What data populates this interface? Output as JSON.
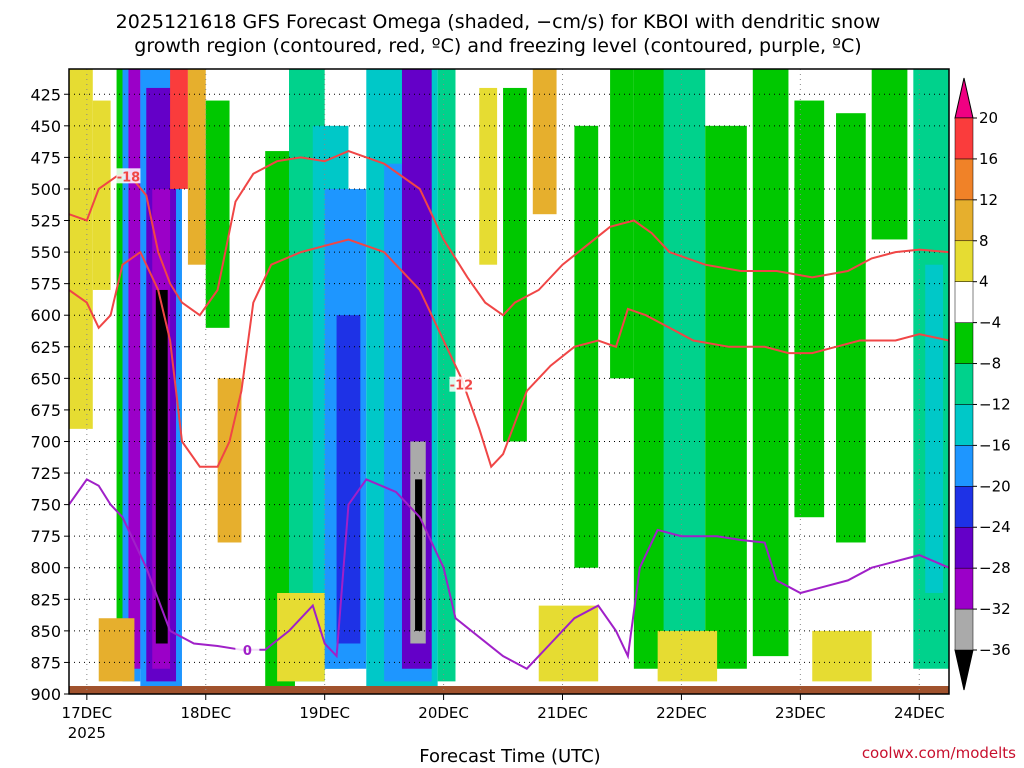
{
  "chart_data": {
    "type": "heatmap",
    "title_line1": "2025121618 GFS Forecast Omega (shaded, −cm/s) for KBOI with dendritic snow",
    "title_line2": "growth region (contoured, red, ºC) and freezing level (contoured, purple, ºC)",
    "xlabel": "Forecast Time (UTC)",
    "credit": "coolwx.com/modelts",
    "x_ticks": [
      "17DEC",
      "18DEC",
      "19DEC",
      "20DEC",
      "21DEC",
      "22DEC",
      "23DEC",
      "24DEC"
    ],
    "x_year": "2025",
    "y_ticks": [
      425,
      450,
      475,
      500,
      525,
      550,
      575,
      600,
      625,
      650,
      675,
      700,
      725,
      750,
      775,
      800,
      825,
      850,
      875,
      900
    ],
    "ylim": [
      900,
      405
    ],
    "xlim": [
      16.85,
      24.25
    ],
    "y_grid": true,
    "x_grid": true,
    "colorbar": {
      "levels": [
        -36,
        -32,
        -28,
        -24,
        -20,
        -16,
        -12,
        -8,
        -4,
        4,
        8,
        12,
        16,
        20
      ],
      "tick_labels": [
        "20",
        "16",
        "12",
        "8",
        "4",
        "−4",
        "−8",
        "−12",
        "−16",
        "−20",
        "−24",
        "−28",
        "−32",
        "−36"
      ],
      "bins": [
        {
          "range": "<-36",
          "color": "#000000"
        },
        {
          "range": "-36..-32",
          "color": "#aaaaaa"
        },
        {
          "range": "-32..-28",
          "color": "#9b00c8"
        },
        {
          "range": "-28..-24",
          "color": "#6400c8"
        },
        {
          "range": "-24..-20",
          "color": "#1e32e6"
        },
        {
          "range": "-20..-16",
          "color": "#1e96ff"
        },
        {
          "range": "-16..-12",
          "color": "#00c8c8"
        },
        {
          "range": "-12..-8",
          "color": "#00d28c"
        },
        {
          "range": "-8..-4",
          "color": "#00c800"
        },
        {
          "range": "-4..4",
          "color": "#ffffff"
        },
        {
          "range": "4..8",
          "color": "#e6dc32"
        },
        {
          "range": "8..12",
          "color": "#e6af2d"
        },
        {
          "range": "12..16",
          "color": "#f08228"
        },
        {
          "range": "16..20",
          "color": "#fa3c3c"
        },
        {
          "range": ">20",
          "color": "#f00082"
        }
      ]
    },
    "omega_bands": [
      {
        "x0": 16.85,
        "x1": 17.05,
        "y0": 405,
        "y1": 690,
        "bin": "4..8"
      },
      {
        "x0": 17.05,
        "x1": 17.2,
        "y0": 430,
        "y1": 580,
        "bin": "4..8"
      },
      {
        "x0": 17.25,
        "x1": 17.35,
        "y0": 405,
        "y1": 880,
        "bin": "-8..-4"
      },
      {
        "x0": 17.3,
        "x1": 17.45,
        "y0": 405,
        "y1": 890,
        "bin": "-20..-16"
      },
      {
        "x0": 17.35,
        "x1": 17.45,
        "y0": 405,
        "y1": 880,
        "bin": "-32..-28"
      },
      {
        "x0": 17.45,
        "x1": 17.8,
        "y0": 405,
        "y1": 895,
        "bin": "-20..-16"
      },
      {
        "x0": 17.5,
        "x1": 17.75,
        "y0": 420,
        "y1": 890,
        "bin": "-28..-24"
      },
      {
        "x0": 17.55,
        "x1": 17.7,
        "y0": 500,
        "y1": 880,
        "bin": "-32..-28"
      },
      {
        "x0": 17.58,
        "x1": 17.68,
        "y0": 580,
        "y1": 860,
        "bin": "<-36"
      },
      {
        "x0": 17.7,
        "x1": 17.85,
        "y0": 405,
        "y1": 500,
        "bin": "16..20"
      },
      {
        "x0": 17.85,
        "x1": 18.0,
        "y0": 405,
        "y1": 560,
        "bin": "8..12"
      },
      {
        "x0": 18.0,
        "x1": 18.2,
        "y0": 430,
        "y1": 610,
        "bin": "-8..-4"
      },
      {
        "x0": 18.1,
        "x1": 18.3,
        "y0": 650,
        "y1": 780,
        "bin": "8..12"
      },
      {
        "x0": 18.5,
        "x1": 18.75,
        "y0": 470,
        "y1": 900,
        "bin": "-8..-4"
      },
      {
        "x0": 18.7,
        "x1": 19.0,
        "y0": 405,
        "y1": 890,
        "bin": "-12..-8"
      },
      {
        "x0": 18.9,
        "x1": 19.2,
        "y0": 450,
        "y1": 880,
        "bin": "-16..-12"
      },
      {
        "x0": 19.0,
        "x1": 19.35,
        "y0": 500,
        "y1": 880,
        "bin": "-20..-16"
      },
      {
        "x0": 19.1,
        "x1": 19.3,
        "y0": 600,
        "y1": 860,
        "bin": "-24..-20"
      },
      {
        "x0": 19.35,
        "x1": 19.95,
        "y0": 405,
        "y1": 895,
        "bin": "-16..-12"
      },
      {
        "x0": 19.5,
        "x1": 19.9,
        "y0": 480,
        "y1": 890,
        "bin": "-20..-16"
      },
      {
        "x0": 19.65,
        "x1": 19.9,
        "y0": 405,
        "y1": 880,
        "bin": "-28..-24"
      },
      {
        "x0": 19.72,
        "x1": 19.85,
        "y0": 700,
        "y1": 860,
        "bin": "-36..-32"
      },
      {
        "x0": 19.76,
        "x1": 19.82,
        "y0": 730,
        "y1": 850,
        "bin": "<-36"
      },
      {
        "x0": 19.95,
        "x1": 20.1,
        "y0": 405,
        "y1": 890,
        "bin": "-12..-8"
      },
      {
        "x0": 20.3,
        "x1": 20.45,
        "y0": 420,
        "y1": 560,
        "bin": "4..8"
      },
      {
        "x0": 20.5,
        "x1": 20.7,
        "y0": 420,
        "y1": 700,
        "bin": "-8..-4"
      },
      {
        "x0": 20.75,
        "x1": 20.95,
        "y0": 405,
        "y1": 520,
        "bin": "8..12"
      },
      {
        "x0": 21.1,
        "x1": 21.3,
        "y0": 450,
        "y1": 800,
        "bin": "-8..-4"
      },
      {
        "x0": 21.4,
        "x1": 21.6,
        "y0": 405,
        "y1": 650,
        "bin": "-8..-4"
      },
      {
        "x0": 21.6,
        "x1": 21.9,
        "y0": 405,
        "y1": 880,
        "bin": "-8..-4"
      },
      {
        "x0": 21.85,
        "x1": 22.2,
        "y0": 405,
        "y1": 870,
        "bin": "-12..-8"
      },
      {
        "x0": 22.2,
        "x1": 22.55,
        "y0": 450,
        "y1": 880,
        "bin": "-8..-4"
      },
      {
        "x0": 22.6,
        "x1": 22.9,
        "y0": 405,
        "y1": 870,
        "bin": "-8..-4"
      },
      {
        "x0": 22.95,
        "x1": 23.2,
        "y0": 430,
        "y1": 760,
        "bin": "-8..-4"
      },
      {
        "x0": 23.3,
        "x1": 23.55,
        "y0": 440,
        "y1": 780,
        "bin": "-8..-4"
      },
      {
        "x0": 23.6,
        "x1": 23.9,
        "y0": 405,
        "y1": 540,
        "bin": "-8..-4"
      },
      {
        "x0": 23.95,
        "x1": 24.25,
        "y0": 405,
        "y1": 880,
        "bin": "-12..-8"
      },
      {
        "x0": 24.05,
        "x1": 24.2,
        "y0": 560,
        "y1": 820,
        "bin": "-16..-12"
      },
      {
        "x0": 17.1,
        "x1": 17.4,
        "y0": 840,
        "y1": 890,
        "bin": "8..12"
      },
      {
        "x0": 18.6,
        "x1": 19.0,
        "y0": 820,
        "y1": 890,
        "bin": "4..8"
      },
      {
        "x0": 20.8,
        "x1": 21.3,
        "y0": 830,
        "y1": 890,
        "bin": "4..8"
      },
      {
        "x0": 21.8,
        "x1": 22.3,
        "y0": 850,
        "y1": 890,
        "bin": "4..8"
      },
      {
        "x0": 23.1,
        "x1": 23.6,
        "y0": 850,
        "y1": 890,
        "bin": "4..8"
      }
    ],
    "dgz_contours": [
      {
        "label": "-18",
        "points": [
          [
            16.85,
            520
          ],
          [
            17.0,
            525
          ],
          [
            17.1,
            500
          ],
          [
            17.25,
            490
          ],
          [
            17.35,
            488
          ],
          [
            17.5,
            505
          ],
          [
            17.6,
            550
          ],
          [
            17.7,
            575
          ],
          [
            17.8,
            590
          ],
          [
            17.95,
            600
          ],
          [
            18.1,
            580
          ],
          [
            18.25,
            510
          ],
          [
            18.4,
            488
          ],
          [
            18.6,
            478
          ],
          [
            18.8,
            475
          ],
          [
            19.0,
            478
          ],
          [
            19.2,
            470
          ],
          [
            19.5,
            480
          ],
          [
            19.8,
            500
          ],
          [
            20.0,
            540
          ],
          [
            20.2,
            570
          ],
          [
            20.35,
            590
          ],
          [
            20.5,
            600
          ],
          [
            20.6,
            590
          ],
          [
            20.8,
            580
          ],
          [
            21.0,
            560
          ],
          [
            21.2,
            545
          ],
          [
            21.4,
            530
          ],
          [
            21.6,
            525
          ],
          [
            21.75,
            535
          ],
          [
            21.9,
            550
          ],
          [
            22.2,
            560
          ],
          [
            22.5,
            565
          ],
          [
            22.8,
            565
          ],
          [
            23.1,
            570
          ],
          [
            23.4,
            565
          ],
          [
            23.6,
            555
          ],
          [
            23.8,
            550
          ],
          [
            24.0,
            548
          ],
          [
            24.25,
            550
          ]
        ],
        "label_xy": [
          17.35,
          490
        ]
      },
      {
        "label": "-12",
        "points": [
          [
            16.85,
            580
          ],
          [
            17.0,
            590
          ],
          [
            17.1,
            610
          ],
          [
            17.2,
            600
          ],
          [
            17.3,
            560
          ],
          [
            17.45,
            550
          ],
          [
            17.6,
            580
          ],
          [
            17.7,
            620
          ],
          [
            17.8,
            700
          ],
          [
            17.95,
            720
          ],
          [
            18.1,
            720
          ],
          [
            18.2,
            700
          ],
          [
            18.3,
            660
          ],
          [
            18.4,
            590
          ],
          [
            18.55,
            560
          ],
          [
            18.8,
            550
          ],
          [
            19.0,
            545
          ],
          [
            19.2,
            540
          ],
          [
            19.5,
            550
          ],
          [
            19.8,
            580
          ],
          [
            20.0,
            620
          ],
          [
            20.15,
            650
          ],
          [
            20.3,
            690
          ],
          [
            20.4,
            720
          ],
          [
            20.5,
            710
          ],
          [
            20.7,
            660
          ],
          [
            20.9,
            640
          ],
          [
            21.1,
            625
          ],
          [
            21.3,
            620
          ],
          [
            21.45,
            625
          ],
          [
            21.55,
            595
          ],
          [
            21.7,
            600
          ],
          [
            21.9,
            610
          ],
          [
            22.1,
            620
          ],
          [
            22.4,
            625
          ],
          [
            22.7,
            625
          ],
          [
            22.9,
            630
          ],
          [
            23.1,
            630
          ],
          [
            23.3,
            625
          ],
          [
            23.5,
            620
          ],
          [
            23.8,
            620
          ],
          [
            24.0,
            615
          ],
          [
            24.25,
            620
          ]
        ],
        "label_xy": [
          20.15,
          655
        ]
      }
    ],
    "freezing_contours": [
      {
        "label": "0",
        "points": [
          [
            16.85,
            750
          ],
          [
            17.0,
            730
          ],
          [
            17.1,
            735
          ],
          [
            17.2,
            750
          ],
          [
            17.3,
            760
          ],
          [
            17.5,
            800
          ],
          [
            17.7,
            850
          ],
          [
            17.9,
            860
          ],
          [
            18.1,
            862
          ],
          [
            18.3,
            865
          ],
          [
            18.5,
            865
          ],
          [
            18.7,
            850
          ],
          [
            18.9,
            830
          ],
          [
            19.0,
            860
          ],
          [
            19.1,
            870
          ],
          [
            19.2,
            750
          ],
          [
            19.35,
            730
          ],
          [
            19.6,
            740
          ],
          [
            19.8,
            760
          ],
          [
            20.0,
            800
          ],
          [
            20.1,
            840
          ],
          [
            20.3,
            855
          ],
          [
            20.5,
            870
          ],
          [
            20.7,
            880
          ],
          [
            20.9,
            860
          ],
          [
            21.1,
            840
          ],
          [
            21.3,
            830
          ],
          [
            21.45,
            850
          ],
          [
            21.55,
            870
          ],
          [
            21.65,
            800
          ],
          [
            21.8,
            770
          ],
          [
            22.0,
            775
          ],
          [
            22.3,
            775
          ],
          [
            22.5,
            778
          ],
          [
            22.7,
            780
          ],
          [
            22.8,
            810
          ],
          [
            23.0,
            820
          ],
          [
            23.2,
            815
          ],
          [
            23.4,
            810
          ],
          [
            23.6,
            800
          ],
          [
            23.8,
            795
          ],
          [
            24.0,
            790
          ],
          [
            24.25,
            800
          ]
        ],
        "label_xy": [
          18.35,
          865
        ]
      }
    ],
    "terrain_color": "#a0522d",
    "dgz_color": "#f04646",
    "freezing_color": "#a020c8"
  }
}
